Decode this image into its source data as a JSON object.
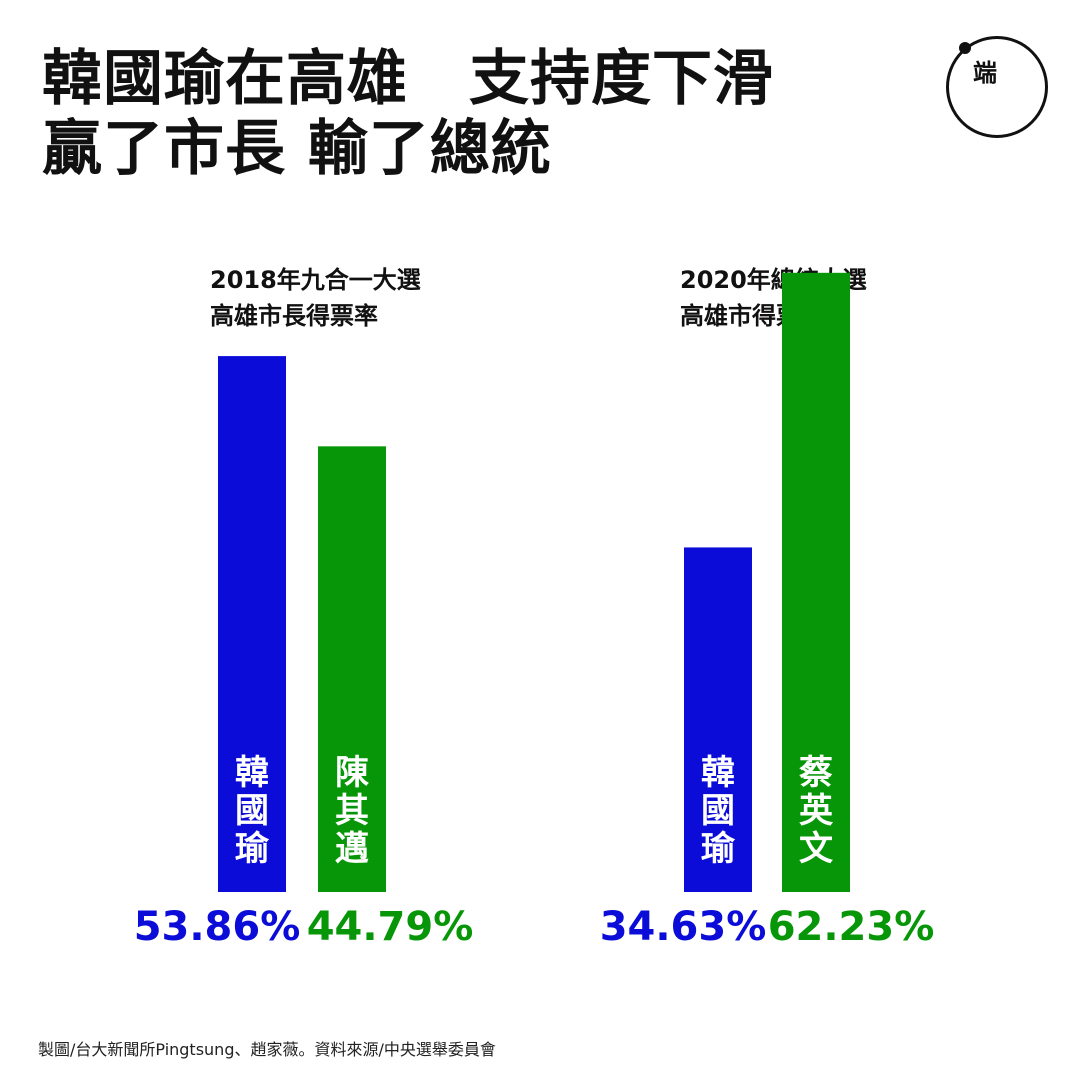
{
  "headline": {
    "line1": "韓國瑜在高雄　支持度下滑",
    "line2": "贏了市長 輸了總統"
  },
  "logo": {
    "mark": "端",
    "icon": "initium-logo"
  },
  "colors": {
    "han": "#0c0cd8",
    "opponent": "#079607",
    "text": "#111111"
  },
  "chart_data": [
    {
      "type": "bar",
      "title_line1": "2018年九合一大選",
      "title_line2": "高雄市長得票率",
      "categories": [
        "韓國瑜",
        "陳其邁"
      ],
      "values": [
        53.86,
        44.79
      ],
      "labels": [
        "53.86%",
        "44.79%"
      ],
      "colors": [
        "#0c0cd8",
        "#079607"
      ],
      "ylim": [
        0,
        70
      ]
    },
    {
      "type": "bar",
      "title_line1": "2020年總統大選",
      "title_line2": "高雄市得票率",
      "categories": [
        "韓國瑜",
        "蔡英文"
      ],
      "values": [
        34.63,
        62.23
      ],
      "labels": [
        "34.63%",
        "62.23%"
      ],
      "colors": [
        "#0c0cd8",
        "#079607"
      ],
      "ylim": [
        0,
        70
      ]
    }
  ],
  "credit": "製圖/台大新聞所Pingtsung、趙家薇。資料來源/中央選舉委員會"
}
